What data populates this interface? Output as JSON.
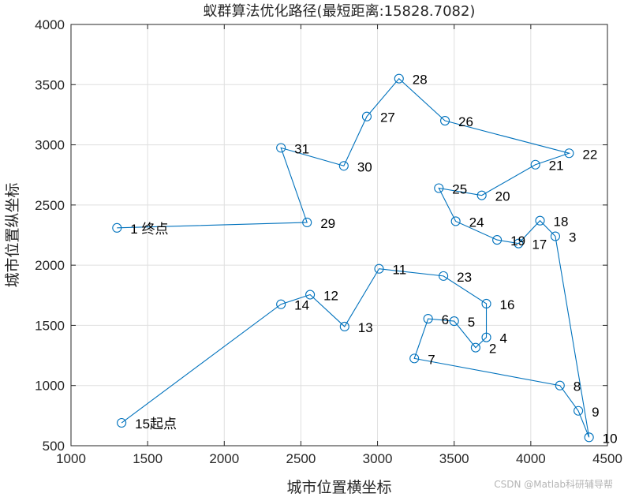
{
  "chart_data": {
    "type": "line",
    "title": "蚁群算法优化路径(最短距离:15828.7082)",
    "xlabel": "城市位置横坐标",
    "ylabel": "城市位置纵坐标",
    "xlim": [
      1000,
      4500
    ],
    "ylim": [
      500,
      4000
    ],
    "xticks": [
      1000,
      1500,
      2000,
      2500,
      3000,
      3500,
      4000,
      4500
    ],
    "yticks": [
      500,
      1000,
      1500,
      2000,
      2500,
      3000,
      3500,
      4000
    ],
    "grid": true,
    "line_color": "#0072BD",
    "marker": "circle",
    "cities": [
      {
        "id": "15",
        "x": 1330,
        "y": 690,
        "label": "15起点"
      },
      {
        "id": "14",
        "x": 2370,
        "y": 1675,
        "label": "14"
      },
      {
        "id": "12",
        "x": 2560,
        "y": 1755,
        "label": "12"
      },
      {
        "id": "13",
        "x": 2785,
        "y": 1490,
        "label": "13"
      },
      {
        "id": "11",
        "x": 3010,
        "y": 1970,
        "label": "11"
      },
      {
        "id": "23",
        "x": 3430,
        "y": 1910,
        "label": "23"
      },
      {
        "id": "16",
        "x": 3710,
        "y": 1680,
        "label": "16"
      },
      {
        "id": "4",
        "x": 3710,
        "y": 1400,
        "label": "4"
      },
      {
        "id": "2",
        "x": 3640,
        "y": 1315,
        "label": "2"
      },
      {
        "id": "5",
        "x": 3500,
        "y": 1535,
        "label": "5"
      },
      {
        "id": "6",
        "x": 3330,
        "y": 1555,
        "label": "6"
      },
      {
        "id": "7",
        "x": 3240,
        "y": 1225,
        "label": "7"
      },
      {
        "id": "8",
        "x": 4190,
        "y": 1000,
        "label": "8"
      },
      {
        "id": "9",
        "x": 4310,
        "y": 790,
        "label": "9"
      },
      {
        "id": "10",
        "x": 4380,
        "y": 570,
        "label": "10"
      },
      {
        "id": "3",
        "x": 4160,
        "y": 2240,
        "label": "3"
      },
      {
        "id": "18",
        "x": 4060,
        "y": 2370,
        "label": "18"
      },
      {
        "id": "17",
        "x": 3920,
        "y": 2180,
        "label": "17"
      },
      {
        "id": "19",
        "x": 3780,
        "y": 2210,
        "label": "19"
      },
      {
        "id": "24",
        "x": 3510,
        "y": 2365,
        "label": "24"
      },
      {
        "id": "25",
        "x": 3400,
        "y": 2640,
        "label": "25"
      },
      {
        "id": "20",
        "x": 3680,
        "y": 2580,
        "label": "20"
      },
      {
        "id": "21",
        "x": 4030,
        "y": 2835,
        "label": "21"
      },
      {
        "id": "22",
        "x": 4250,
        "y": 2930,
        "label": "22"
      },
      {
        "id": "26",
        "x": 3440,
        "y": 3200,
        "label": "26"
      },
      {
        "id": "28",
        "x": 3140,
        "y": 3550,
        "label": "28"
      },
      {
        "id": "27",
        "x": 2930,
        "y": 3235,
        "label": "27"
      },
      {
        "id": "30",
        "x": 2780,
        "y": 2825,
        "label": "30"
      },
      {
        "id": "31",
        "x": 2370,
        "y": 2975,
        "label": "31"
      },
      {
        "id": "29",
        "x": 2540,
        "y": 2355,
        "label": "29"
      },
      {
        "id": "1",
        "x": 1300,
        "y": 2310,
        "label": "1  终点"
      }
    ]
  },
  "watermark": "CSDN @Matlab科研辅导帮"
}
